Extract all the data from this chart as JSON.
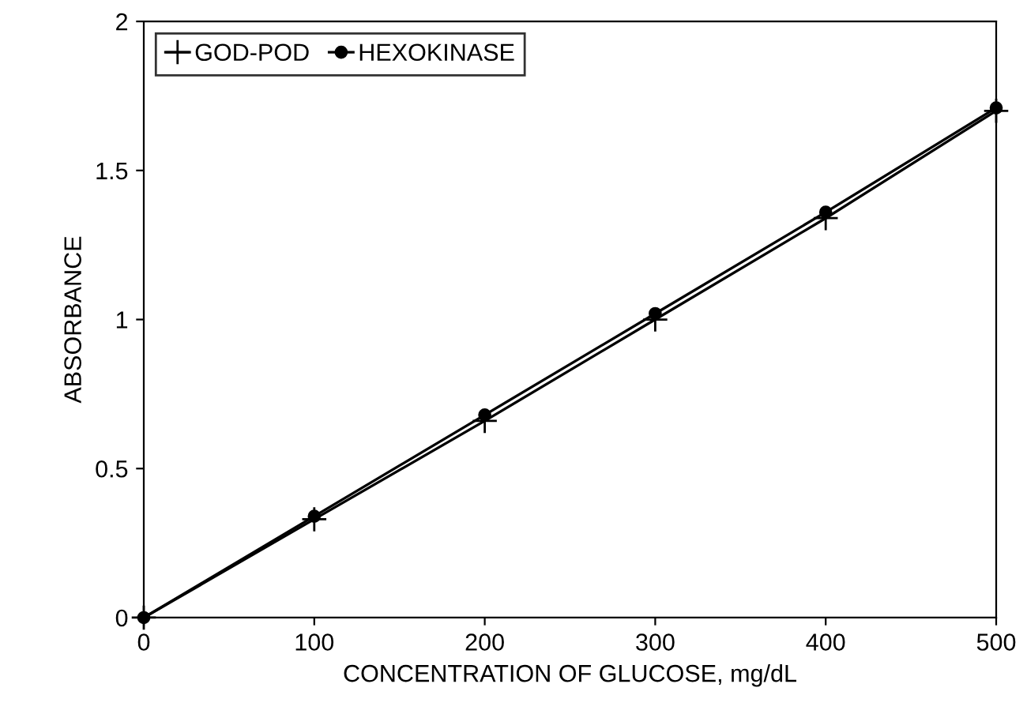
{
  "chart_data": {
    "type": "line",
    "xlabel": "CONCENTRATION OF GLUCOSE, mg/dL",
    "ylabel": "ABSORBANCE",
    "x": [
      0,
      100,
      200,
      300,
      400,
      500
    ],
    "series": [
      {
        "name": "GOD-POD",
        "color": "#000000",
        "marker": "cross",
        "values": [
          0,
          0.33,
          0.66,
          1.0,
          1.34,
          1.7
        ]
      },
      {
        "name": "HEXOKINASE",
        "color": "#000000",
        "marker": "circle",
        "values": [
          0,
          0.34,
          0.68,
          1.02,
          1.36,
          1.71
        ]
      }
    ],
    "xlim": [
      0,
      500
    ],
    "xticks": [
      0,
      100,
      200,
      300,
      400,
      500
    ],
    "ylim": [
      0,
      2
    ],
    "yticks": [
      0,
      0.5,
      1,
      1.5,
      2
    ],
    "grid": false,
    "legend": "top left",
    "line_style": "solid"
  }
}
